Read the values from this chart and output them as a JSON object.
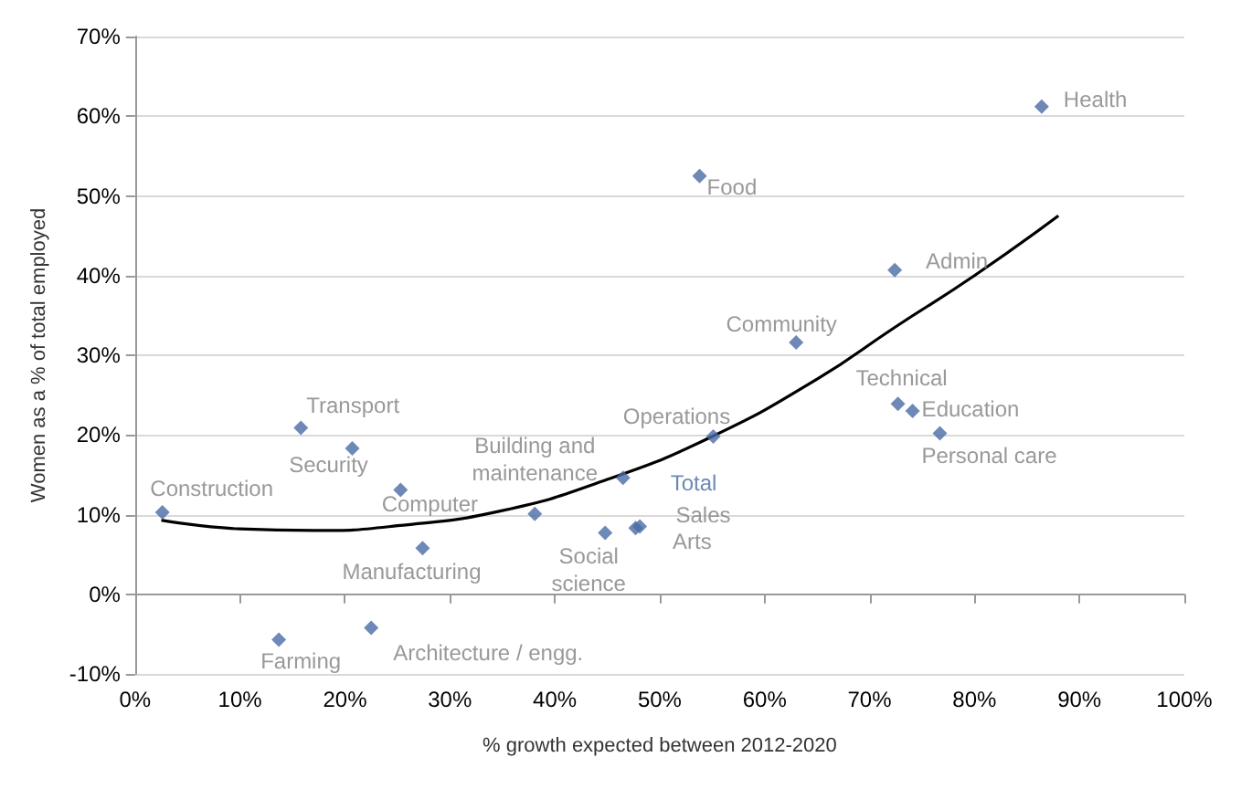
{
  "chart_data": {
    "type": "scatter",
    "xlabel": "% growth expected between 2012-2020",
    "ylabel": "Women as a % of total employed",
    "xlim": [
      0,
      100
    ],
    "ylim": [
      -10,
      70
    ],
    "xticks": [
      {
        "value": 0,
        "label": "0%"
      },
      {
        "value": 10,
        "label": "10%"
      },
      {
        "value": 20,
        "label": "20%"
      },
      {
        "value": 30,
        "label": "30%"
      },
      {
        "value": 40,
        "label": "40%"
      },
      {
        "value": 50,
        "label": "50%"
      },
      {
        "value": 60,
        "label": "60%"
      },
      {
        "value": 70,
        "label": "70%"
      },
      {
        "value": 80,
        "label": "80%"
      },
      {
        "value": 90,
        "label": "90%"
      },
      {
        "value": 100,
        "label": "100%"
      }
    ],
    "yticks": [
      {
        "value": -10,
        "label": "-10%"
      },
      {
        "value": 0,
        "label": "0%"
      },
      {
        "value": 10,
        "label": "10%"
      },
      {
        "value": 20,
        "label": "20%"
      },
      {
        "value": 30,
        "label": "30%"
      },
      {
        "value": 40,
        "label": "40%"
      },
      {
        "value": 50,
        "label": "50%"
      },
      {
        "value": 60,
        "label": "60%"
      },
      {
        "value": 70,
        "label": "70%"
      }
    ],
    "grid": "y",
    "marker": "diamond",
    "series": [
      {
        "color": "#4a6aa5",
        "x": [
          2.6,
          15.8,
          20.7,
          25.3,
          27.4,
          13.7,
          22.5,
          38.1,
          44.8,
          46.5,
          47.7,
          48.1,
          55.1,
          53.8,
          63.0,
          72.4,
          72.7,
          74.1,
          76.7,
          86.4
        ],
        "values": [
          10.3,
          20.9,
          18.3,
          13.1,
          5.8,
          -5.7,
          -4.2,
          10.1,
          7.7,
          14.6,
          8.3,
          8.5,
          19.8,
          52.5,
          31.6,
          40.7,
          23.9,
          23.0,
          20.2,
          61.2
        ]
      },
      {
        "type": "line",
        "color": "#000000",
        "marker": "none",
        "x": [
          2.5,
          10,
          17,
          25,
          35,
          45,
          55,
          65,
          72.4,
          80,
          88
        ],
        "values": [
          9.3,
          8.2,
          8.0,
          8.6,
          10.5,
          14.4,
          19.8,
          27.0,
          33.5,
          40.0,
          47.5
        ]
      }
    ],
    "annotations": [
      {
        "text": "Construction",
        "x": 2.6,
        "y": 10.3
      },
      {
        "text": "Transport",
        "x": 15.8,
        "y": 20.9
      },
      {
        "text": "Security",
        "x": 20.7,
        "y": 18.3
      },
      {
        "text": "Computer",
        "x": 25.3,
        "y": 13.1
      },
      {
        "text": "Manufacturing",
        "x": 27.4,
        "y": 5.8
      },
      {
        "text": "Farming",
        "x": 13.7,
        "y": -5.7
      },
      {
        "text": "Architecture / engg.",
        "x": 22.5,
        "y": -4.2
      },
      {
        "text": "Building and\nmaintenance",
        "x": 38.1,
        "y": 10.1
      },
      {
        "text": "Social\nscience",
        "x": 44.8,
        "y": 7.7
      },
      {
        "text": "Total",
        "x": 46.5,
        "y": 14.6
      },
      {
        "text": "Sales",
        "x": 47.7,
        "y": 8.3
      },
      {
        "text": "Arts",
        "x": 48.1,
        "y": 8.5
      },
      {
        "text": "Operations",
        "x": 55.1,
        "y": 19.8
      },
      {
        "text": "Food",
        "x": 53.8,
        "y": 52.5
      },
      {
        "text": "Community",
        "x": 63.0,
        "y": 31.6
      },
      {
        "text": "Admin",
        "x": 72.4,
        "y": 40.7
      },
      {
        "text": "Technical",
        "x": 72.7,
        "y": 23.9
      },
      {
        "text": "Education",
        "x": 74.1,
        "y": 23.0
      },
      {
        "text": "Personal care",
        "x": 76.7,
        "y": 20.2
      },
      {
        "text": "Health",
        "x": 86.4,
        "y": 61.2
      }
    ]
  }
}
